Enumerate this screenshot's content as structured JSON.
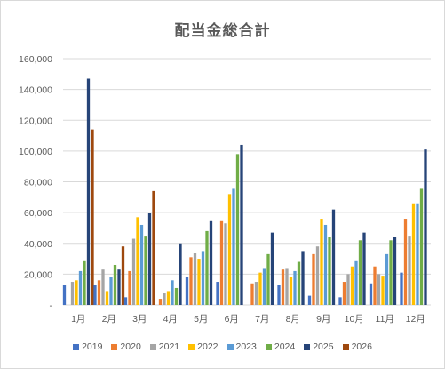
{
  "chart_data": {
    "type": "bar",
    "title": "配当金総合計",
    "xlabel": "",
    "ylabel": "",
    "ylim": [
      0,
      160000
    ],
    "yticks": [
      "-",
      "20,000",
      "40,000",
      "60,000",
      "80,000",
      "100,000",
      "120,000",
      "140,000",
      "160,000"
    ],
    "grid": true,
    "legend_position": "bottom",
    "categories": [
      "1月",
      "2月",
      "3月",
      "4月",
      "5月",
      "6月",
      "7月",
      "8月",
      "9月",
      "10月",
      "11月",
      "12月"
    ],
    "series": [
      {
        "name": "2019",
        "color": "#4472c4",
        "values": [
          13000,
          13000,
          5000,
          0,
          18000,
          15000,
          0,
          13000,
          6000,
          5000,
          14000,
          21000
        ]
      },
      {
        "name": "2020",
        "color": "#ed7d31",
        "values": [
          0,
          16000,
          22000,
          4000,
          31000,
          55000,
          14000,
          23000,
          33000,
          15000,
          25000,
          56000
        ]
      },
      {
        "name": "2021",
        "color": "#a5a5a5",
        "values": [
          15000,
          23000,
          43000,
          8000,
          34000,
          53000,
          15000,
          24000,
          38000,
          20000,
          20000,
          45000
        ]
      },
      {
        "name": "2022",
        "color": "#ffc000",
        "values": [
          16000,
          9000,
          57000,
          9000,
          30000,
          72000,
          21000,
          18000,
          56000,
          25000,
          19000,
          66000
        ]
      },
      {
        "name": "2023",
        "color": "#5b9bd5",
        "values": [
          22000,
          18000,
          52000,
          16000,
          35000,
          76000,
          24000,
          22000,
          52000,
          29000,
          33000,
          66000
        ]
      },
      {
        "name": "2024",
        "color": "#70ad47",
        "values": [
          29000,
          26000,
          45000,
          11000,
          48000,
          98000,
          33000,
          28000,
          44000,
          42000,
          42000,
          76000
        ]
      },
      {
        "name": "2025",
        "color": "#264478",
        "values": [
          147000,
          23000,
          60000,
          40000,
          55000,
          104000,
          47000,
          35000,
          62000,
          47000,
          44000,
          101000
        ]
      },
      {
        "name": "2026",
        "color": "#9e480e",
        "values": [
          114000,
          38000,
          74000,
          0,
          0,
          0,
          0,
          0,
          0,
          0,
          0,
          0
        ]
      }
    ]
  }
}
